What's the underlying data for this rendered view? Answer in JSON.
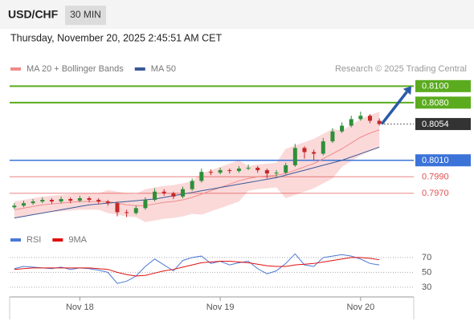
{
  "header": {
    "symbol": "USD/CHF",
    "interval": "30 MIN",
    "timestamp": "Thursday, November 20, 2025 2:45:51 AM CET"
  },
  "chart_data": {
    "type": "candlestick",
    "credit": "Research © 2025 Trading Central",
    "up_color": "#2f8f3a",
    "down_color": "#c62828",
    "ylim": [
      0.7927,
      0.8112
    ],
    "candles": [
      [
        0.7953,
        0.7958,
        0.7951,
        0.7955
      ],
      [
        0.7955,
        0.7961,
        0.7953,
        0.7958
      ],
      [
        0.7958,
        0.7963,
        0.7956,
        0.796
      ],
      [
        0.796,
        0.7965,
        0.7958,
        0.7962
      ],
      [
        0.7962,
        0.7964,
        0.7957,
        0.796
      ],
      [
        0.796,
        0.7966,
        0.7958,
        0.7963
      ],
      [
        0.7963,
        0.7965,
        0.7958,
        0.7961
      ],
      [
        0.7961,
        0.7967,
        0.7959,
        0.7964
      ],
      [
        0.7964,
        0.7966,
        0.7959,
        0.7962
      ],
      [
        0.7962,
        0.7964,
        0.7957,
        0.796
      ],
      [
        0.796,
        0.7962,
        0.7955,
        0.7958
      ],
      [
        0.7958,
        0.796,
        0.7942,
        0.7947
      ],
      [
        0.7947,
        0.795,
        0.7941,
        0.7946
      ],
      [
        0.7946,
        0.7955,
        0.7944,
        0.7952
      ],
      [
        0.7952,
        0.7965,
        0.795,
        0.7962
      ],
      [
        0.7962,
        0.7976,
        0.796,
        0.7972
      ],
      [
        0.7972,
        0.7975,
        0.7967,
        0.797
      ],
      [
        0.797,
        0.7972,
        0.7963,
        0.7966
      ],
      [
        0.7966,
        0.7978,
        0.7964,
        0.7975
      ],
      [
        0.7975,
        0.7988,
        0.7973,
        0.7985
      ],
      [
        0.7985,
        0.8,
        0.7983,
        0.7996
      ],
      [
        0.7996,
        0.7999,
        0.7992,
        0.7995
      ],
      [
        0.7995,
        0.8001,
        0.7993,
        0.7998
      ],
      [
        0.7998,
        0.8,
        0.7994,
        0.7997
      ],
      [
        0.7997,
        0.8003,
        0.7995,
        0.8
      ],
      [
        0.8,
        0.8005,
        0.7998,
        0.8001
      ],
      [
        0.8001,
        0.8003,
        0.7995,
        0.7998
      ],
      [
        0.7998,
        0.8,
        0.7988,
        0.7994
      ],
      [
        0.7994,
        0.7998,
        0.799,
        0.7995
      ],
      [
        0.7995,
        0.8007,
        0.7993,
        0.8004
      ],
      [
        0.8004,
        0.803,
        0.8002,
        0.8025
      ],
      [
        0.8025,
        0.8027,
        0.8012,
        0.802
      ],
      [
        0.802,
        0.8023,
        0.801,
        0.8018
      ],
      [
        0.8018,
        0.8037,
        0.8016,
        0.8033
      ],
      [
        0.8033,
        0.8049,
        0.8031,
        0.8045
      ],
      [
        0.8045,
        0.8056,
        0.8043,
        0.8052
      ],
      [
        0.8052,
        0.8064,
        0.805,
        0.806
      ],
      [
        0.806,
        0.8069,
        0.8058,
        0.8064
      ],
      [
        0.8064,
        0.8066,
        0.8055,
        0.8058
      ],
      [
        0.8058,
        0.8061,
        0.8052,
        0.8054
      ]
    ],
    "overlays": [
      {
        "name": "MA 20 + Bollinger Bands",
        "color": "#f08c8c",
        "band_color": "#fbd9d9",
        "values": [
          0.795,
          0.7952,
          0.7954,
          0.7956,
          0.7957,
          0.7958,
          0.7959,
          0.796,
          0.796,
          0.796,
          0.796,
          0.7958,
          0.7956,
          0.7955,
          0.7955,
          0.7957,
          0.7959,
          0.796,
          0.7962,
          0.7965,
          0.7969,
          0.7973,
          0.7977,
          0.7981,
          0.7985,
          0.7988,
          0.799,
          0.7991,
          0.7992,
          0.7994,
          0.7998,
          0.8002,
          0.8006,
          0.8012,
          0.8018,
          0.8024,
          0.8031,
          0.8038,
          0.8043,
          0.8047
        ],
        "upper": [
          0.796,
          0.7962,
          0.7964,
          0.7966,
          0.7967,
          0.7968,
          0.7969,
          0.797,
          0.797,
          0.797,
          0.7974,
          0.7972,
          0.797,
          0.7969,
          0.7975,
          0.7977,
          0.7979,
          0.798,
          0.7982,
          0.7985,
          0.7994,
          0.7998,
          0.8002,
          0.8006,
          0.801,
          0.8003,
          0.8005,
          0.8006,
          0.8007,
          0.8024,
          0.8028,
          0.8032,
          0.8036,
          0.8042,
          0.8048,
          0.8046,
          0.8053,
          0.806,
          0.8065,
          0.8069
        ],
        "lower": [
          0.794,
          0.7942,
          0.7944,
          0.7946,
          0.7947,
          0.7948,
          0.7949,
          0.795,
          0.795,
          0.795,
          0.7946,
          0.7944,
          0.7942,
          0.7941,
          0.7935,
          0.7937,
          0.7939,
          0.794,
          0.7942,
          0.7945,
          0.7944,
          0.7948,
          0.7952,
          0.7956,
          0.796,
          0.7973,
          0.7975,
          0.7976,
          0.7977,
          0.7964,
          0.7968,
          0.7972,
          0.7976,
          0.7982,
          0.7988,
          0.8002,
          0.8009,
          0.8016,
          0.8021,
          0.8025
        ]
      },
      {
        "name": "MA 50",
        "color": "#3a5a9a",
        "values": [
          0.794,
          0.7942,
          0.7944,
          0.7946,
          0.7948,
          0.795,
          0.7952,
          0.7954,
          0.7956,
          0.7957,
          0.7958,
          0.7959,
          0.796,
          0.7961,
          0.7962,
          0.7963,
          0.7965,
          0.7967,
          0.7969,
          0.7971,
          0.7973,
          0.7975,
          0.7977,
          0.7979,
          0.7981,
          0.7983,
          0.7985,
          0.7987,
          0.7989,
          0.7992,
          0.7995,
          0.7998,
          0.8001,
          0.8004,
          0.8007,
          0.801,
          0.8014,
          0.8018,
          0.8022,
          0.8026
        ]
      }
    ],
    "levels": [
      {
        "value": 0.81,
        "label": "0.8100",
        "color": "#5aab1e",
        "label_style": "box",
        "line_width": 2
      },
      {
        "value": 0.808,
        "label": "0.8080",
        "color": "#5aab1e",
        "label_style": "box",
        "line_width": 2
      },
      {
        "value": 0.8054,
        "label": "0.8054",
        "color": "#333333",
        "label_style": "box",
        "line_width": 1,
        "dotted": true
      },
      {
        "value": 0.801,
        "label": "0.8010",
        "color": "#3b73d8",
        "label_style": "box",
        "line_width": 1.5
      },
      {
        "value": 0.799,
        "label": "0.7990",
        "color": "#e0504f",
        "label_style": "text",
        "line_width": 1
      },
      {
        "value": 0.797,
        "label": "0.7970",
        "color": "#e0504f",
        "label_style": "text",
        "line_width": 1
      }
    ],
    "x_labels": [
      {
        "index": 7,
        "label": "Nov 18"
      },
      {
        "index": 22,
        "label": "Nov 19"
      },
      {
        "index": 37,
        "label": "Nov 20"
      }
    ]
  },
  "rsi": {
    "ylim": [
      19,
      84
    ],
    "yticks": [
      70,
      50,
      30
    ],
    "series": [
      {
        "name": "RSI",
        "color": "#4a78d6",
        "values": [
          55,
          58,
          57,
          56,
          55,
          57,
          54,
          56,
          55,
          53,
          50,
          35,
          38,
          45,
          58,
          68,
          60,
          52,
          66,
          70,
          72,
          62,
          65,
          60,
          63,
          65,
          55,
          48,
          52,
          62,
          75,
          60,
          58,
          70,
          72,
          74,
          72,
          68,
          62,
          60
        ]
      },
      {
        "name": "9MA",
        "color": "#e01010",
        "values": [
          54,
          55,
          56,
          56,
          56,
          56,
          56,
          56,
          56,
          55,
          54,
          50,
          47,
          45,
          46,
          49,
          52,
          54,
          57,
          60,
          63,
          64,
          65,
          65,
          64,
          63,
          61,
          59,
          58,
          58,
          60,
          61,
          62,
          64,
          66,
          68,
          70,
          70,
          69,
          67
        ]
      }
    ]
  }
}
